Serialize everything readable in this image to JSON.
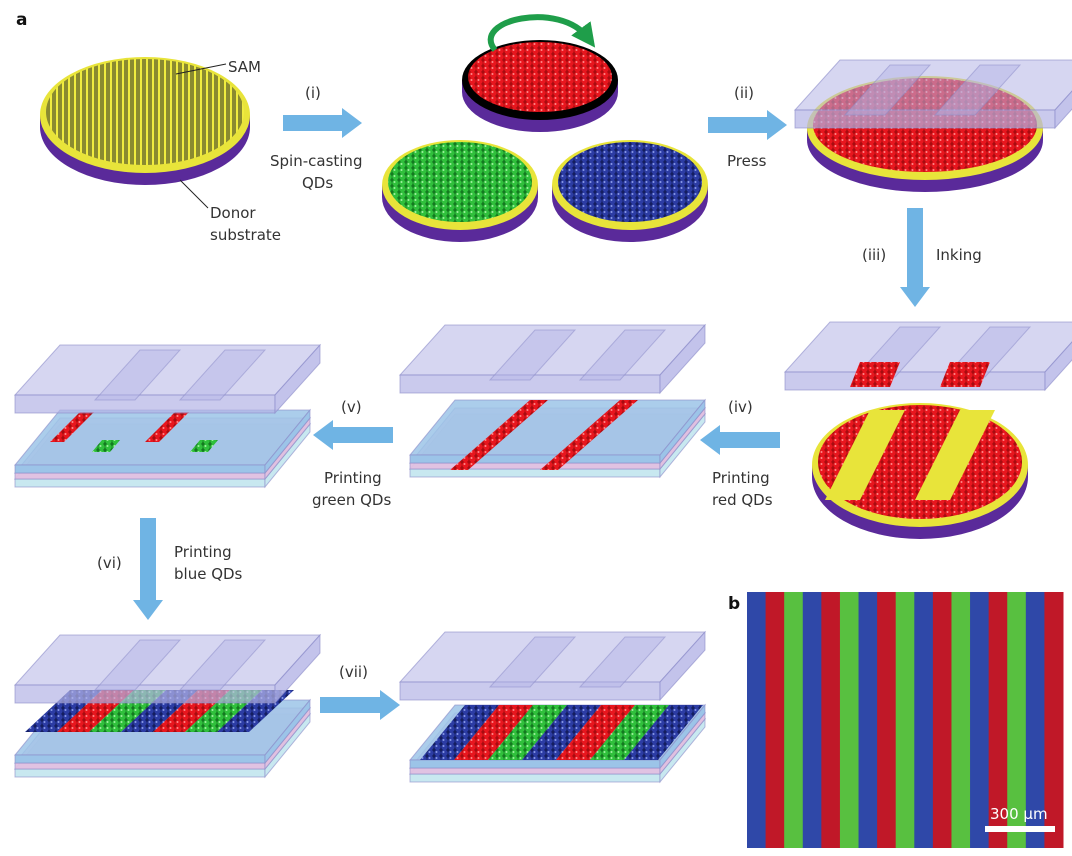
{
  "panels": {
    "a": "a",
    "b": "b"
  },
  "labels": {
    "sam": "SAM",
    "donor_line1": "Donor",
    "donor_line2": "substrate",
    "step_i": "(i)",
    "spin_line1": "Spin-casting",
    "spin_line2": "QDs",
    "step_ii": "(ii)",
    "press": "Press",
    "step_iii": "(iii)",
    "inking": "Inking",
    "step_iv": "(iv)",
    "print_red_line1": "Printing",
    "print_red_line2": "red QDs",
    "step_v": "(v)",
    "print_green_line1": "Printing",
    "print_green_line2": "green QDs",
    "step_vi": "(vi)",
    "print_blue_line1": "Printing",
    "print_blue_line2": "blue QDs",
    "step_vii": "(vii)"
  },
  "panel_b": {
    "scale_bar": "300 µm",
    "stripe_sequence": [
      "blue",
      "red",
      "green",
      "blue",
      "red",
      "green",
      "blue",
      "red",
      "green",
      "blue",
      "red",
      "green",
      "blue",
      "red",
      "green",
      "blue",
      "red"
    ]
  },
  "colors": {
    "red_qd": "#e0141c",
    "green_qd": "#2db83a",
    "blue_qd": "#2a3a9c",
    "sam_yellow": "#e8e43a",
    "substrate_purple": "#5a2a9a",
    "arrow_blue": "#6fb4e4",
    "stamp": "#b4b4e6",
    "spin_arrow": "#1f9e4a",
    "micro_red": "#c01828",
    "micro_green": "#58c040",
    "micro_blue": "#2f48a8"
  }
}
